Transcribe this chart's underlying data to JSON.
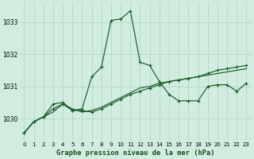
{
  "title": "Graphe pression niveau de la mer (hPa)",
  "bg_color": "#d0ede0",
  "grid_color": "#b0d4c0",
  "line_color": "#1a5c28",
  "xlim": [
    -0.5,
    23.5
  ],
  "ylim": [
    1029.3,
    1033.6
  ],
  "yticks": [
    1030,
    1031,
    1032,
    1033
  ],
  "xticks": [
    0,
    1,
    2,
    3,
    4,
    5,
    6,
    7,
    8,
    9,
    10,
    11,
    12,
    13,
    14,
    15,
    16,
    17,
    18,
    19,
    20,
    21,
    22,
    23
  ],
  "series1_x": [
    0,
    1,
    2,
    3,
    4,
    5,
    6,
    7,
    8,
    9,
    10,
    11,
    12,
    13,
    14,
    15,
    16,
    17,
    18,
    19,
    20,
    21,
    22,
    23
  ],
  "series1_y": [
    1029.55,
    1029.9,
    1030.05,
    1030.45,
    1030.5,
    1030.25,
    1030.3,
    1031.3,
    1031.6,
    1033.05,
    1033.1,
    1033.35,
    1031.75,
    1031.65,
    1031.15,
    1030.75,
    1030.55,
    1030.55,
    1030.55,
    1031.0,
    1031.05,
    1031.05,
    1030.85,
    1031.1
  ],
  "series2_x": [
    0,
    1,
    2,
    3,
    4,
    5,
    6,
    7,
    8,
    9,
    10,
    11,
    12,
    13,
    14,
    15,
    16,
    17,
    18,
    19,
    20,
    21,
    22,
    23
  ],
  "series2_y": [
    1029.55,
    1029.9,
    1030.05,
    1030.3,
    1030.45,
    1030.25,
    1030.25,
    1030.2,
    1030.3,
    1030.45,
    1030.6,
    1030.75,
    1030.85,
    1030.95,
    1031.05,
    1031.15,
    1031.2,
    1031.25,
    1031.3,
    1031.4,
    1031.5,
    1031.55,
    1031.6,
    1031.65
  ],
  "series3_x": [
    0,
    1,
    2,
    3,
    4,
    5,
    6,
    7,
    8,
    9,
    10,
    11,
    12,
    13,
    14,
    15,
    16,
    17,
    18,
    19,
    20,
    21,
    22,
    23
  ],
  "series3_y": [
    1029.55,
    1029.9,
    1030.05,
    1030.2,
    1030.45,
    1030.3,
    1030.2,
    1030.25,
    1030.35,
    1030.5,
    1030.65,
    1030.8,
    1030.95,
    1031.0,
    1031.1,
    1031.15,
    1031.2,
    1031.25,
    1031.3,
    1031.35,
    1031.4,
    1031.45,
    1031.5,
    1031.55
  ]
}
